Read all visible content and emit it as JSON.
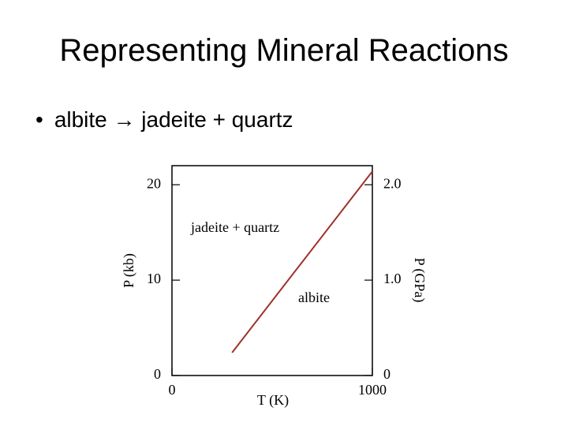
{
  "slide": {
    "title": "Representing Mineral Reactions",
    "bullet": "albite → jadeite + quartz"
  },
  "chart_data": {
    "type": "line",
    "x_label": "T (K)",
    "y_label": "P (kb)",
    "y2_label": "P (GPa)",
    "xlim": [
      0,
      1000
    ],
    "xticks": [
      0,
      1000
    ],
    "ylim": [
      0,
      22
    ],
    "yticks": [
      0,
      10,
      20
    ],
    "y2lim": [
      0,
      2.2
    ],
    "y2ticks": [
      0,
      {
        "value": 1,
        "label": "1.0"
      },
      {
        "value": 2,
        "label": "2.0"
      }
    ],
    "x": [
      300,
      1000
    ],
    "series": [
      {
        "color": "#a0302a",
        "values": [
          2.4,
          21.4
        ]
      }
    ],
    "annotations": [
      "jadeite + quartz",
      "albite"
    ]
  }
}
